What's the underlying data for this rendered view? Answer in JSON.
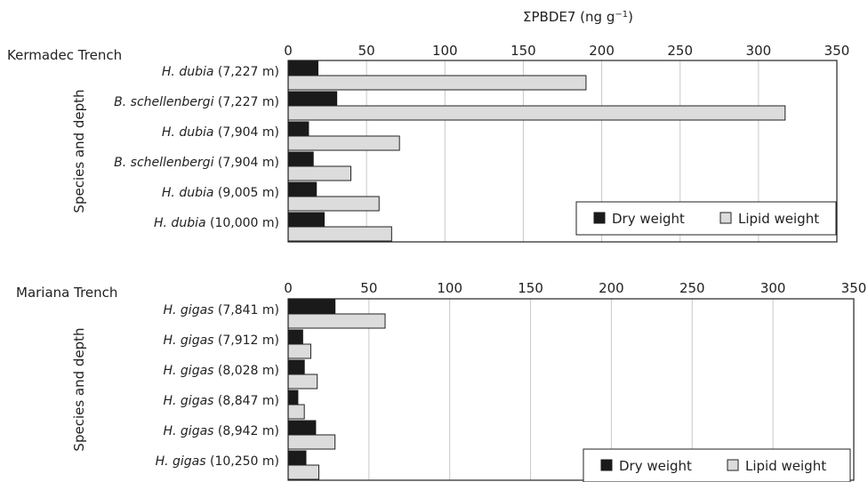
{
  "xaxis_label": "ΣPBDE7 (ng g",
  "xaxis_label_sup": "−1",
  "xaxis_label_close": ")",
  "legend_labels": [
    "Dry weight",
    "Lipid weight"
  ],
  "colors": {
    "dry": "#1a1a1a",
    "lipid": "#dcdcdc",
    "grid": "#c8c8c8",
    "frame": "#222222"
  },
  "chart_data": [
    {
      "type": "bar",
      "orientation": "horizontal",
      "title": "Kermadec Trench",
      "ylabel": "Species and depth",
      "xlim": [
        0,
        350
      ],
      "xticks": [
        0,
        50,
        100,
        150,
        200,
        250,
        300,
        350
      ],
      "grid": true,
      "legend_position": "bottom-right",
      "categories": [
        {
          "species": "H. dubia",
          "depth": "(7,227 m)"
        },
        {
          "species": "B. schellenbergi",
          "depth": "(7,227 m)"
        },
        {
          "species": "H. dubia",
          "depth": "(7,904 m)"
        },
        {
          "species": "B. schellenbergi",
          "depth": "(7,904 m)"
        },
        {
          "species": "H. dubia",
          "depth": "(9,005 m)"
        },
        {
          "species": "H. dubia",
          "depth": "(10,000 m)"
        }
      ],
      "series": [
        {
          "name": "Dry weight",
          "values": [
            19,
            31,
            13,
            16,
            18,
            23
          ]
        },
        {
          "name": "Lipid weight",
          "values": [
            190,
            317,
            71,
            40,
            58,
            66
          ]
        }
      ]
    },
    {
      "type": "bar",
      "orientation": "horizontal",
      "title": "Mariana Trench",
      "ylabel": "Species and depth",
      "xlim": [
        0,
        350
      ],
      "xticks": [
        0,
        50,
        100,
        150,
        200,
        250,
        300,
        350
      ],
      "grid": true,
      "legend_position": "bottom-right",
      "categories": [
        {
          "species": "H. gigas",
          "depth": "(7,841 m)"
        },
        {
          "species": "H. gigas",
          "depth": "(7,912 m)"
        },
        {
          "species": "H. gigas",
          "depth": "(8,028 m)"
        },
        {
          "species": "H. gigas",
          "depth": "(8,847 m)"
        },
        {
          "species": "H. gigas",
          "depth": "(8,942 m)"
        },
        {
          "species": "H. gigas",
          "depth": "(10,250 m)"
        }
      ],
      "series": [
        {
          "name": "Dry weight",
          "values": [
            29,
            9,
            10,
            6,
            17,
            11
          ]
        },
        {
          "name": "Lipid weight",
          "values": [
            60,
            14,
            18,
            10,
            29,
            19
          ]
        }
      ]
    }
  ]
}
